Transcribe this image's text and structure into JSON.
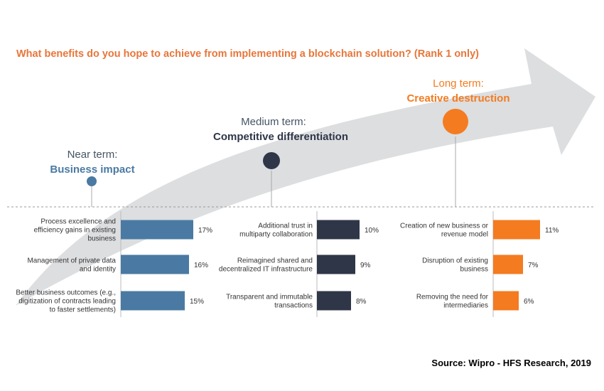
{
  "title": "What benefits do you hope to achieve from implementing a blockchain solution? (Rank 1 only)",
  "source": "Source: Wipro - HFS Research, 2019",
  "colors": {
    "title": "#E8763A",
    "near": "#4A7AA3",
    "medium": "#2F3648",
    "long": "#F47B20",
    "arrow": "#DCDEE0"
  },
  "terms": {
    "near": {
      "label": "Near term:",
      "subtitle": "Business impact"
    },
    "medium": {
      "label": "Medium term:",
      "subtitle": "Competitive differentiation"
    },
    "long": {
      "label": "Long term:",
      "subtitle": "Creative destruction"
    }
  },
  "chart_data": [
    {
      "type": "bar",
      "group": "near",
      "categories": [
        "Process excellence and efficiency gains in existing business",
        "Management of private data and identity",
        "Better business outcomes (e.g., digitization of contracts leading to faster settlements)"
      ],
      "values": [
        17,
        16,
        15
      ],
      "value_labels": [
        "17%",
        "16%",
        "15%"
      ],
      "unit": "%"
    },
    {
      "type": "bar",
      "group": "medium",
      "categories": [
        "Additional trust in multiparty collaboration",
        "Reimagined shared and decentralized IT infrastructure",
        "Transparent and immutable transactions"
      ],
      "values": [
        10,
        9,
        8
      ],
      "value_labels": [
        "10%",
        "9%",
        "8%"
      ],
      "unit": "%"
    },
    {
      "type": "bar",
      "group": "long",
      "categories": [
        "Creation of new business or revenue model",
        "Disruption of existing business",
        "Removing the need for intermediaries"
      ],
      "values": [
        11,
        7,
        6
      ],
      "value_labels": [
        "11%",
        "7%",
        "6%"
      ],
      "unit": "%"
    }
  ]
}
